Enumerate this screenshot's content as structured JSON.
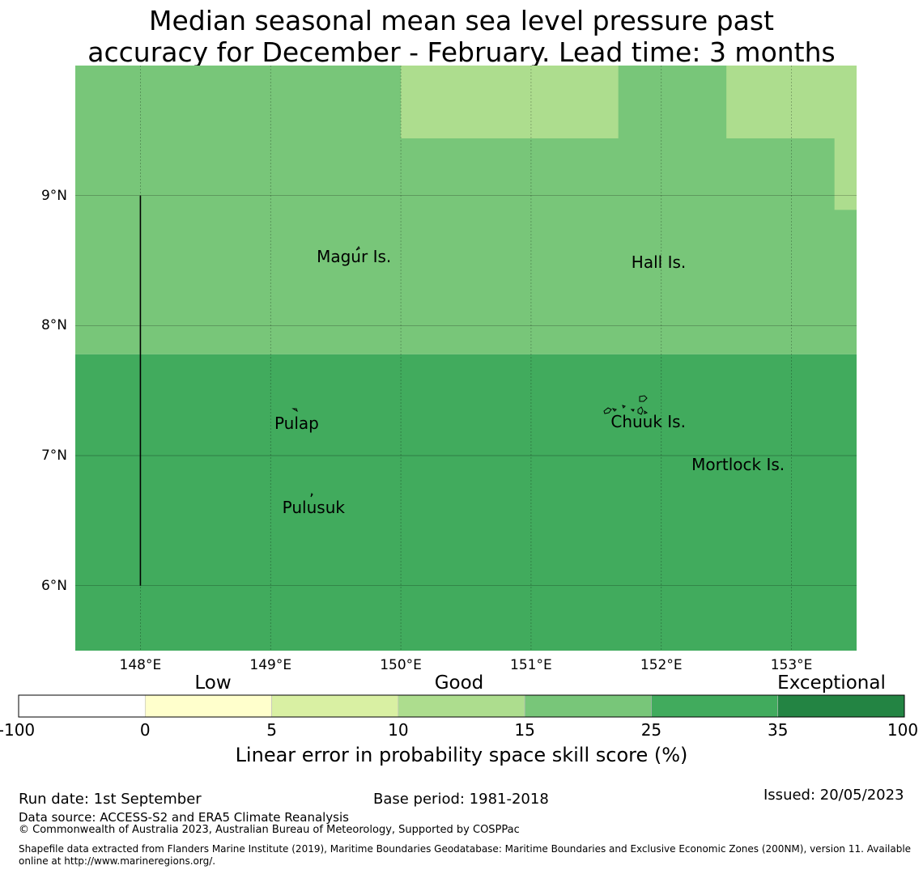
{
  "title": {
    "line1": "Median seasonal mean sea level pressure past",
    "line2": "accuracy for December - February. Lead time: 3 months"
  },
  "map": {
    "lon_range": [
      147.5,
      153.5
    ],
    "lat_range": [
      5.5,
      10.0
    ],
    "lon_ticks": [
      "148°E",
      "149°E",
      "150°E",
      "151°E",
      "152°E",
      "153°E"
    ],
    "lat_ticks": [
      "9°N",
      "8°N",
      "7°N",
      "6°N"
    ],
    "lon_tick_values": [
      148,
      149,
      150,
      151,
      152,
      153
    ],
    "lat_tick_values": [
      9,
      8,
      7,
      6
    ],
    "regions": [
      {
        "lon": [
          147.5,
          153.5
        ],
        "lat": [
          5.5,
          7.78
        ],
        "category": "25-35",
        "color": "#41ab5d"
      },
      {
        "lon": [
          147.5,
          153.5
        ],
        "lat": [
          7.78,
          10.0
        ],
        "category": "15-25",
        "color": "#78c679"
      },
      {
        "lon": [
          150.0,
          151.67
        ],
        "lat": [
          9.44,
          10.0
        ],
        "category": "10-15",
        "color": "#addd8e"
      },
      {
        "lon": [
          152.5,
          153.5
        ],
        "lat": [
          9.44,
          10.0
        ],
        "category": "10-15",
        "color": "#addd8e"
      },
      {
        "lon": [
          153.33,
          153.5
        ],
        "lat": [
          8.89,
          9.44
        ],
        "category": "10-15",
        "color": "#addd8e"
      }
    ],
    "boundary_line": {
      "lon": 148.0,
      "lat": [
        6.0,
        9.0
      ]
    },
    "places": [
      {
        "name": "Magur Is.",
        "lon": 149.64,
        "lat": 8.53
      },
      {
        "name": "Hall Is.",
        "lon": 151.98,
        "lat": 8.49
      },
      {
        "name": "Pulap",
        "lon": 149.2,
        "lat": 7.25
      },
      {
        "name": "Chuuk Is.",
        "lon": 151.9,
        "lat": 7.26
      },
      {
        "name": "Mortlock Is.",
        "lon": 152.59,
        "lat": 6.93
      },
      {
        "name": "Pulusuk",
        "lon": 149.33,
        "lat": 6.6
      }
    ]
  },
  "colorbar": {
    "category_labels": [
      "Low",
      "Good",
      "Exceptional"
    ],
    "ticks": [
      "-100",
      "0",
      "5",
      "10",
      "15",
      "25",
      "35",
      "100"
    ],
    "colors": [
      "#ffffff",
      "#ffffcc",
      "#d9f0a3",
      "#addd8e",
      "#78c679",
      "#41ab5d",
      "#238443"
    ],
    "xlabel": "Linear error in probability space skill score (%)"
  },
  "footer": {
    "run_date": "Run date: 1st September",
    "base_period": "Base period: 1981-2018",
    "issued": "Issued: 20/05/2023",
    "data_source": "Data source: ACCESS-S2 and ERA5 Climate Reanalysis",
    "copyright": "© Commonwealth of Australia 2023, Australian Bureau of Meteorology, Supported by COSPPac",
    "shapefile_line1": "Shapefile data extracted from Flanders Marine Institute (2019), Maritime Boundaries Geodatabase: Maritime Boundaries and Exclusive Economic Zones (200NM), version 11. Available",
    "shapefile_line2": "online at http://www.marineregions.org/."
  }
}
